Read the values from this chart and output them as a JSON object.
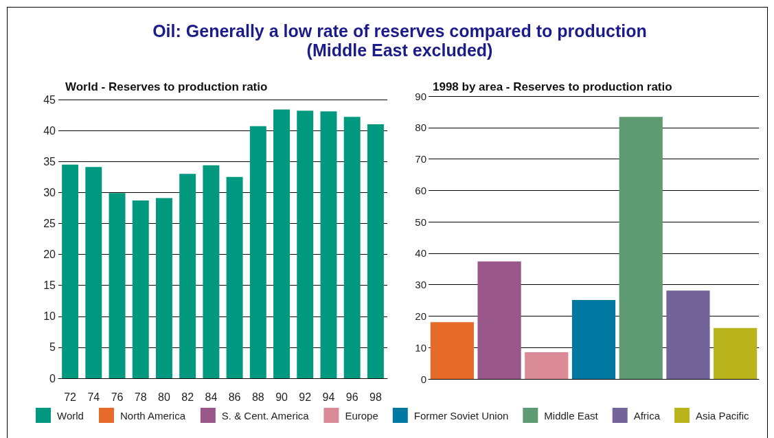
{
  "chart_data": [
    {
      "type": "bar",
      "title": "Oil: Generally a low rate of reserves compared to production\n(Middle East excluded)",
      "subtitle": "World - Reserves to production ratio",
      "categories": [
        "72",
        "74",
        "76",
        "78",
        "80",
        "82",
        "84",
        "86",
        "88",
        "90",
        "92",
        "94",
        "96",
        "98"
      ],
      "series": [
        {
          "name": "World",
          "color": "#00997f",
          "values": [
            34.5,
            34.1,
            29.9,
            28.7,
            29.1,
            33.0,
            34.4,
            32.5,
            40.7,
            43.4,
            43.2,
            43.1,
            42.2,
            41.0
          ]
        }
      ],
      "ylim": [
        0,
        45
      ],
      "yticks": [
        0,
        5,
        10,
        15,
        20,
        25,
        30,
        35,
        40,
        45
      ],
      "grid": "y",
      "legend": "bottom"
    },
    {
      "type": "bar",
      "subtitle": "1998 by area - Reserves to production ratio",
      "categories": [
        null,
        null,
        null,
        null,
        null,
        null,
        null
      ],
      "series": [
        {
          "name": "North America",
          "color": "#e66b2b",
          "values": [
            18.1,
            null,
            null,
            null,
            null,
            null,
            null
          ]
        },
        {
          "name": "S. & Cent. America",
          "color": "#9a5789",
          "values": [
            null,
            37.4,
            null,
            null,
            null,
            null,
            null
          ]
        },
        {
          "name": "Europe",
          "color": "#db8b98",
          "values": [
            null,
            null,
            8.5,
            null,
            null,
            null,
            null
          ]
        },
        {
          "name": "Former Soviet Union",
          "color": "#0078a2",
          "values": [
            null,
            null,
            null,
            25.1,
            null,
            null,
            null
          ]
        },
        {
          "name": "Middle East",
          "color": "#5e9b72",
          "values": [
            null,
            null,
            null,
            null,
            83.4,
            null,
            null
          ]
        },
        {
          "name": "Africa",
          "color": "#726399",
          "values": [
            null,
            null,
            null,
            null,
            null,
            28.1,
            null
          ]
        },
        {
          "name": "Asia Pacific",
          "color": "#b9b41c",
          "values": [
            null,
            null,
            null,
            null,
            null,
            null,
            16.2
          ]
        }
      ],
      "ylim": [
        0,
        90
      ],
      "yticks": [
        0,
        10,
        20,
        30,
        40,
        50,
        60,
        70,
        80,
        90
      ],
      "grid": "y",
      "legend": "bottom"
    }
  ]
}
